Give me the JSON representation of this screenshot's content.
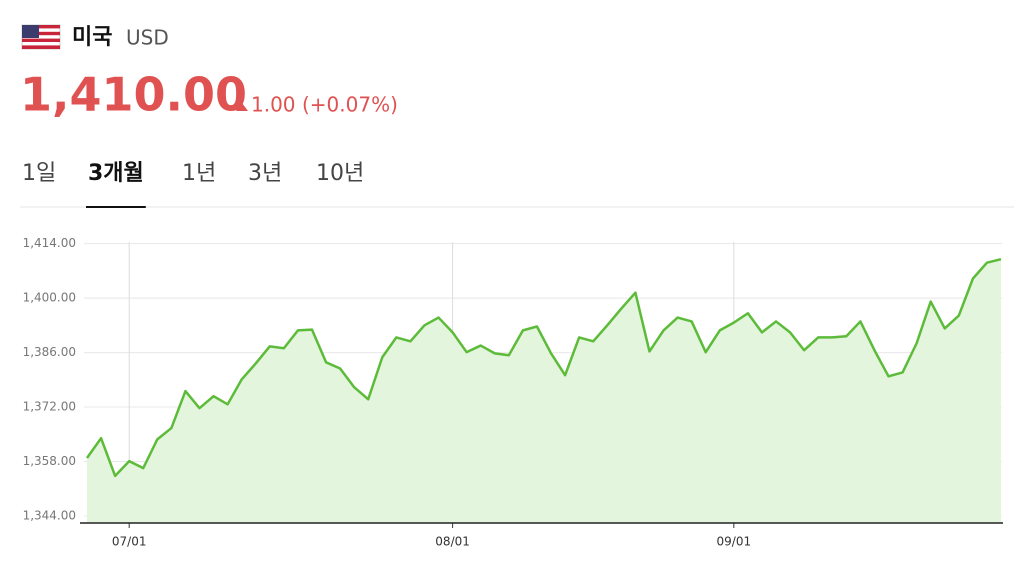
{
  "header": {
    "country": "미국",
    "currency": "USD",
    "price": "1,410.00",
    "change": "1.00",
    "change_pct": "(+0.07%)"
  },
  "tabs": [
    "1일",
    "3개월",
    "1년",
    "3년",
    "10년"
  ],
  "active_tab": 1,
  "chart_data": {
    "type": "area",
    "line_color": "#5dbb3a",
    "fill_color": "#e3f5dc",
    "grid": true,
    "categories": [
      null,
      null,
      null,
      "07/01",
      null,
      null,
      null,
      null,
      null,
      null,
      null,
      null,
      null,
      null,
      null,
      null,
      null,
      null,
      null,
      null,
      null,
      null,
      null,
      null,
      null,
      null,
      "08/01",
      null,
      null,
      null,
      null,
      null,
      null,
      null,
      null,
      null,
      null,
      null,
      null,
      null,
      null,
      null,
      null,
      null,
      null,
      null,
      "09/01",
      null,
      null,
      null,
      null,
      null,
      null,
      null,
      null,
      null,
      null,
      null,
      null,
      null,
      null,
      null,
      null,
      null,
      null,
      null
    ],
    "values": [
      1358.9,
      1364,
      1354.3,
      1358.1,
      1356.3,
      1363.7,
      1366.6,
      1376.1,
      1371.7,
      1374.8,
      1372.7,
      1379.1,
      1383.2,
      1387.6,
      1387.1,
      1391.7,
      1391.9,
      1383.5,
      1381.9,
      1377.1,
      1374,
      1384.8,
      1389.9,
      1388.9,
      1393,
      1395,
      1391.2,
      1386.1,
      1387.8,
      1385.8,
      1385.3,
      1391.7,
      1392.7,
      1385.8,
      1380.2,
      1389.9,
      1388.9,
      1393,
      1397.3,
      1401.4,
      1386.3,
      1391.7,
      1395,
      1394,
      1386.1,
      1391.7,
      1393.7,
      1396.1,
      1391.2,
      1394,
      1391.2,
      1386.6,
      1389.9,
      1389.9,
      1390.2,
      1394,
      1386.6,
      1379.9,
      1380.9,
      1388.4,
      1399.1,
      1392.2,
      1395.5,
      1405,
      1409.1,
      1410
    ],
    "ylim": [
      1342.2,
      1417.5
    ],
    "yticks": [
      {
        "value": 1344,
        "label": "1,344.00"
      },
      {
        "value": 1358,
        "label": "1,358.00"
      },
      {
        "value": 1372,
        "label": "1,372.00"
      },
      {
        "value": 1386,
        "label": "1,386.00"
      },
      {
        "value": 1400,
        "label": "1,400.00"
      },
      {
        "value": 1414,
        "label": "1,414.00"
      }
    ]
  }
}
